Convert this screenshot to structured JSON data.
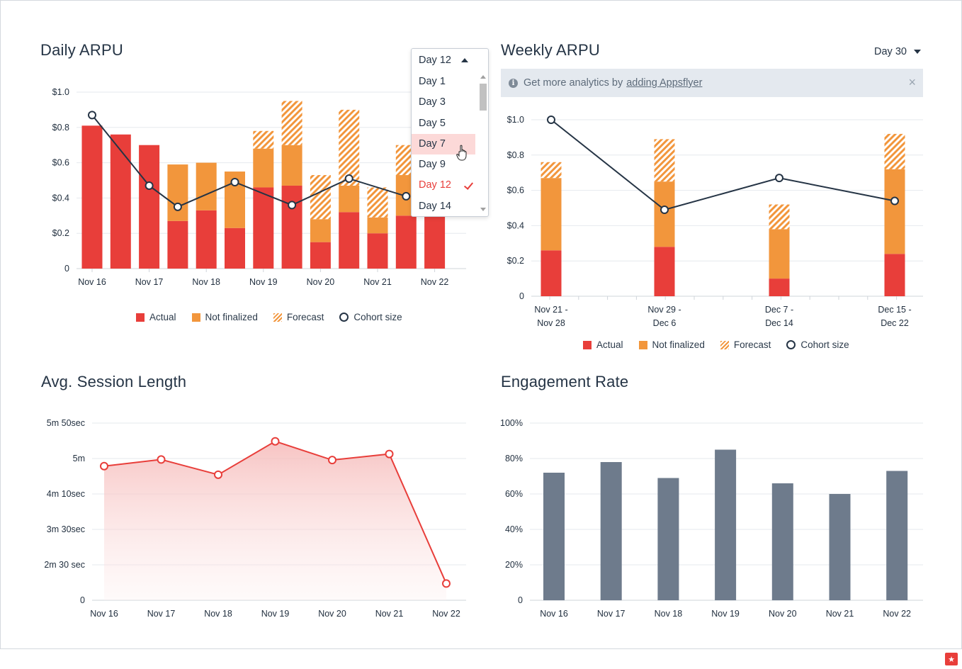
{
  "colors": {
    "actual": "#e83e3a",
    "not_finalized": "#f2963c",
    "forecast": "#f2963c",
    "cohort_line": "#253445",
    "grid": "#e6e9ee",
    "bar_gray": "#6e7b8c",
    "area_line": "#e83e3a"
  },
  "legend": {
    "actual": "Actual",
    "not_finalized": "Not finalized",
    "forecast": "Forecast",
    "cohort_size": "Cohort size"
  },
  "daily_arpu": {
    "title": "Daily ARPU",
    "selector": {
      "value": "Day 12"
    },
    "dropdown": {
      "options": [
        "Day 1",
        "Day 3",
        "Day 5",
        "Day 7",
        "Day 9",
        "Day 12",
        "Day 14"
      ],
      "hovered": "Day 7",
      "selected": "Day 12"
    }
  },
  "weekly_arpu": {
    "title": "Weekly ARPU",
    "selector": {
      "value": "Day 30"
    },
    "banner": {
      "text": "Get more analytics by",
      "link": "adding Appsflyer",
      "close": "×"
    }
  },
  "session": {
    "title": "Avg. Session Length"
  },
  "engagement": {
    "title": "Engagement Rate"
  },
  "chart_data": [
    {
      "type": "bar",
      "title": "Daily ARPU",
      "stacked": true,
      "ylim": [
        0,
        1.0
      ],
      "y_ticks": [
        "0",
        "$0.2",
        "$0.4",
        "$0.6",
        "$0.8",
        "$1.0"
      ],
      "x_tick_labels": [
        "Nov 16",
        "Nov 17",
        "Nov 18",
        "Nov 19",
        "Nov 20",
        "Nov 21",
        "Nov 22"
      ],
      "bar_count": 13,
      "series": [
        {
          "name": "Actual",
          "values": [
            0.81,
            0.76,
            0.7,
            0.27,
            0.33,
            0.23,
            0.46,
            0.47,
            0.15,
            0.32,
            0.2,
            0.3,
            0.3
          ]
        },
        {
          "name": "Not finalized",
          "values": [
            0,
            0,
            0,
            0.32,
            0.27,
            0.32,
            0.22,
            0.23,
            0.13,
            0.15,
            0.09,
            0.23,
            0
          ]
        },
        {
          "name": "Forecast",
          "values": [
            0,
            0,
            0,
            0,
            0,
            0,
            0.1,
            0.25,
            0.25,
            0.43,
            0.17,
            0.17,
            0
          ]
        }
      ],
      "cohort_size": {
        "name": "Cohort size",
        "points": [
          [
            0,
            0.87
          ],
          [
            2,
            0.47
          ],
          [
            3,
            0.35
          ],
          [
            5,
            0.49
          ],
          [
            7,
            0.36
          ],
          [
            9,
            0.51
          ],
          [
            11,
            0.41
          ]
        ]
      },
      "legend_position": "bottom"
    },
    {
      "type": "bar",
      "title": "Weekly ARPU",
      "stacked": true,
      "ylim": [
        0,
        1.0
      ],
      "y_ticks": [
        "0",
        "$0.2",
        "$0.4",
        "$0.6",
        "$0.8",
        "$1.0"
      ],
      "categories": [
        [
          "Nov 21 -",
          "Nov 28"
        ],
        [
          "Nov 29 -",
          "Dec 6"
        ],
        [
          "Dec 7 -",
          "Dec 14"
        ],
        [
          "Dec 15 -",
          "Dec 22"
        ]
      ],
      "series": [
        {
          "name": "Actual",
          "values": [
            0.26,
            0.28,
            0.1,
            0.24
          ]
        },
        {
          "name": "Not finalized",
          "values": [
            0.41,
            0.37,
            0.28,
            0.48
          ]
        },
        {
          "name": "Forecast",
          "values": [
            0.09,
            0.24,
            0.14,
            0.2
          ]
        }
      ],
      "cohort_size": {
        "name": "Cohort size",
        "values": [
          1.0,
          0.49,
          0.67,
          0.54
        ]
      },
      "legend_position": "bottom"
    },
    {
      "type": "area",
      "title": "Avg. Session Length",
      "ylim": [
        0,
        350
      ],
      "y_ticks": [
        {
          "value": 0,
          "label": "0"
        },
        {
          "value": 70,
          "label": "2m 30 sec"
        },
        {
          "value": 140,
          "label": "3m 30sec"
        },
        {
          "value": 210,
          "label": "4m 10sec"
        },
        {
          "value": 280,
          "label": "5m"
        },
        {
          "value": 350,
          "label": "5m 50sec"
        }
      ],
      "categories": [
        "Nov 16",
        "Nov 17",
        "Nov 18",
        "Nov 19",
        "Nov 20",
        "Nov 21",
        "Nov 22"
      ],
      "values": [
        265,
        278,
        248,
        314,
        277,
        289,
        33
      ]
    },
    {
      "type": "bar",
      "title": "Engagement Rate",
      "ylim": [
        0,
        100
      ],
      "y_ticks": [
        "0",
        "20%",
        "40%",
        "60%",
        "80%",
        "100%"
      ],
      "categories": [
        "Nov 16",
        "Nov 17",
        "Nov 18",
        "Nov 19",
        "Nov 20",
        "Nov 21",
        "Nov 22"
      ],
      "values": [
        72,
        78,
        69,
        85,
        66,
        60,
        73
      ]
    }
  ]
}
